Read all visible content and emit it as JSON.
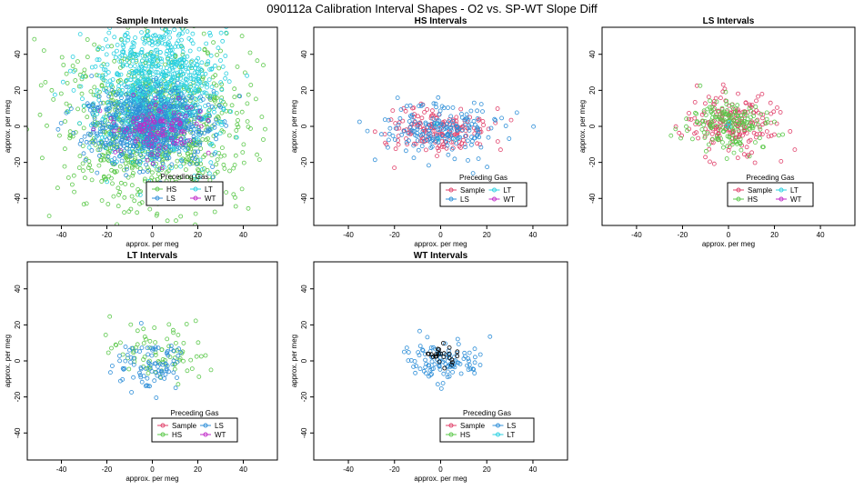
{
  "page_title": "090112a   Calibration Interval Shapes - O2 vs. SP-WT Slope Diff",
  "colors": {
    "Sample": "#e0406a",
    "HS": "#5bc84a",
    "LS": "#2f8fd8",
    "LT": "#2ad0e0",
    "WT": "#c02ac8",
    "black": "#000000"
  },
  "chart_data": [
    {
      "id": "sample",
      "type": "scatter",
      "title": "Sample Intervals",
      "xlabel": "approx. per meg",
      "ylabel": "approx. per meg",
      "xlim": [
        -55,
        55
      ],
      "ylim": [
        -55,
        55
      ],
      "xticks": [
        -40,
        -20,
        0,
        20,
        40
      ],
      "yticks": [
        -40,
        -20,
        0,
        20,
        40
      ],
      "legend_title": "Preceding Gas",
      "legend_position": "bottom-center",
      "legend": [
        "HS",
        "LT",
        "LS",
        "WT"
      ],
      "series": [
        {
          "name": "HS",
          "n": 900,
          "center": [
            0,
            0
          ],
          "spread": [
            20,
            24
          ]
        },
        {
          "name": "LT",
          "n": 900,
          "center": [
            2,
            22
          ],
          "spread": [
            14,
            20
          ]
        },
        {
          "name": "LS",
          "n": 700,
          "center": [
            0,
            0
          ],
          "spread": [
            13,
            10
          ]
        },
        {
          "name": "WT",
          "n": 120,
          "center": [
            2,
            0
          ],
          "spread": [
            9,
            8
          ]
        }
      ]
    },
    {
      "id": "hs",
      "type": "scatter",
      "title": "HS Intervals",
      "xlabel": "approx. per meg",
      "ylabel": "approx. per meg",
      "xlim": [
        -55,
        55
      ],
      "ylim": [
        -55,
        55
      ],
      "xticks": [
        -40,
        -20,
        0,
        20,
        40
      ],
      "yticks": [
        -40,
        -20,
        0,
        20,
        40
      ],
      "legend_title": "Preceding Gas",
      "legend_position": "bottom-right",
      "legend": [
        "Sample",
        "LT",
        "LS",
        "WT"
      ],
      "series": [
        {
          "name": "Sample",
          "n": 170,
          "center": [
            0,
            -2
          ],
          "spread": [
            12,
            7
          ]
        },
        {
          "name": "LS",
          "n": 190,
          "center": [
            0,
            -2
          ],
          "spread": [
            14,
            9
          ]
        },
        {
          "name": "LT",
          "n": 3,
          "center": [
            0,
            0
          ],
          "spread": [
            5,
            5
          ]
        }
      ]
    },
    {
      "id": "ls",
      "type": "scatter",
      "title": "LS Intervals",
      "xlabel": "approx. per meg",
      "ylabel": "approx. per meg",
      "xlim": [
        -55,
        55
      ],
      "ylim": [
        -55,
        55
      ],
      "xticks": [
        -40,
        -20,
        0,
        20,
        40
      ],
      "yticks": [
        -40,
        -20,
        0,
        20,
        40
      ],
      "legend_title": "Preceding Gas",
      "legend_position": "bottom-right",
      "legend": [
        "Sample",
        "LT",
        "HS",
        "WT"
      ],
      "series": [
        {
          "name": "Sample",
          "n": 200,
          "center": [
            1,
            2
          ],
          "spread": [
            10,
            8
          ]
        },
        {
          "name": "HS",
          "n": 170,
          "center": [
            0,
            1
          ],
          "spread": [
            9,
            7
          ]
        },
        {
          "name": "LT",
          "n": 3,
          "center": [
            0,
            0
          ],
          "spread": [
            5,
            5
          ]
        }
      ]
    },
    {
      "id": "lt",
      "type": "scatter",
      "title": "LT Intervals",
      "xlabel": "approx. per meg",
      "ylabel": "approx. per meg",
      "xlim": [
        -55,
        55
      ],
      "ylim": [
        -55,
        55
      ],
      "xticks": [
        -40,
        -20,
        0,
        20,
        40
      ],
      "yticks": [
        -40,
        -20,
        0,
        20,
        40
      ],
      "legend_title": "Preceding Gas",
      "legend_position": "bottom-right",
      "legend": [
        "Sample",
        "LS",
        "HS",
        "WT"
      ],
      "series": [
        {
          "name": "HS",
          "n": 80,
          "center": [
            0,
            3
          ],
          "spread": [
            14,
            8
          ]
        },
        {
          "name": "LS",
          "n": 90,
          "center": [
            0,
            -3
          ],
          "spread": [
            8,
            7
          ]
        }
      ]
    },
    {
      "id": "wt",
      "type": "scatter",
      "title": "WT Intervals",
      "xlabel": "approx. per meg",
      "ylabel": "approx. per meg",
      "xlim": [
        -55,
        55
      ],
      "ylim": [
        -55,
        55
      ],
      "xticks": [
        -40,
        -20,
        0,
        20,
        40
      ],
      "yticks": [
        -40,
        -20,
        0,
        20,
        40
      ],
      "legend_title": "Preceding Gas",
      "legend_position": "bottom-right",
      "legend": [
        "Sample",
        "LS",
        "HS",
        "LT"
      ],
      "series": [
        {
          "name": "LS",
          "n": 110,
          "center": [
            0,
            0
          ],
          "spread": [
            8,
            6
          ]
        },
        {
          "name": "black",
          "n": 25,
          "center": [
            0,
            3
          ],
          "spread": [
            3,
            3
          ]
        }
      ]
    }
  ]
}
